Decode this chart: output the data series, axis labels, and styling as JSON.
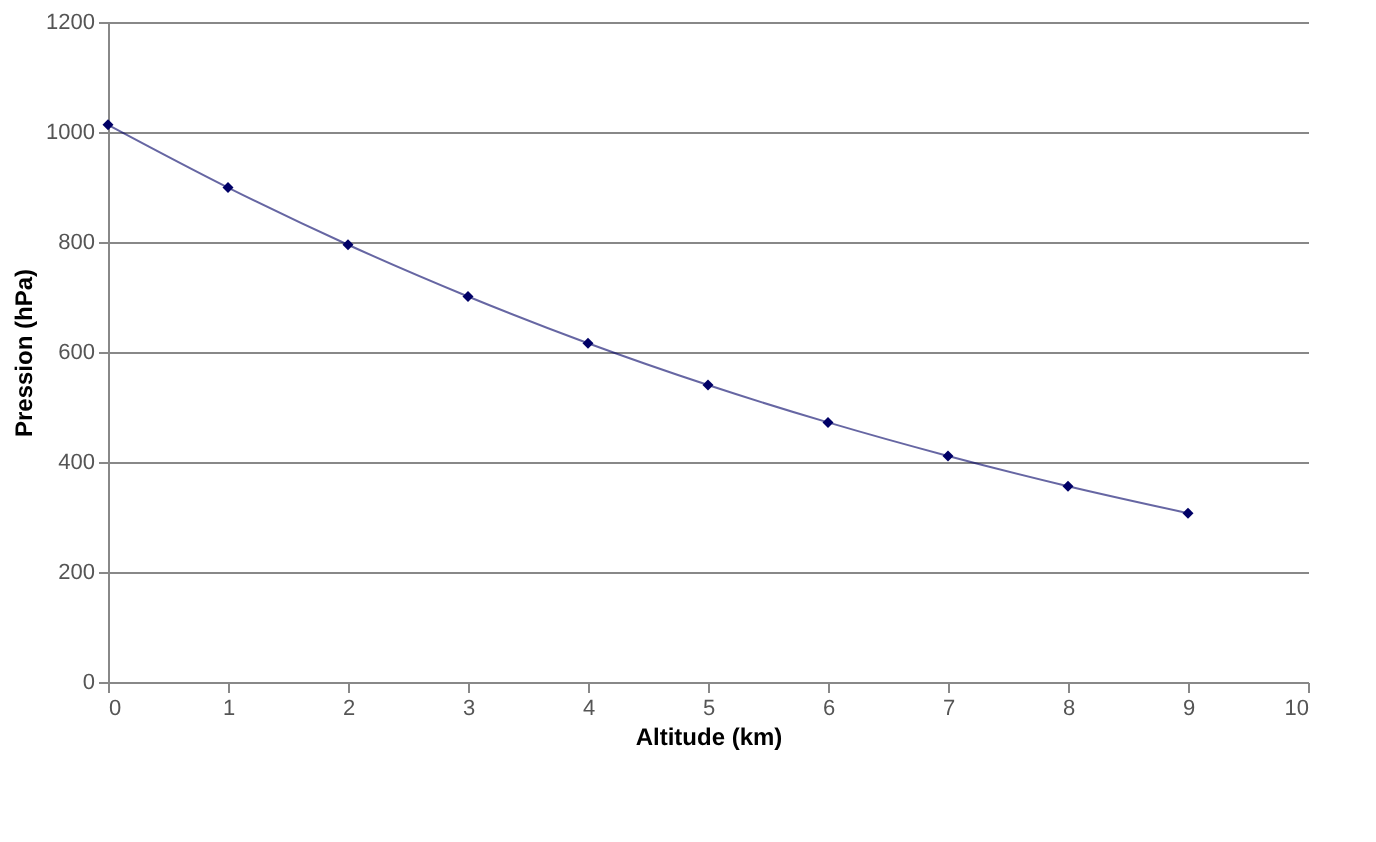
{
  "chart_data": {
    "type": "line",
    "xlabel": "Altitude (km)",
    "ylabel": "Pression (hPa)",
    "x": [
      0,
      1,
      2,
      3,
      4,
      5,
      6,
      7,
      8,
      9
    ],
    "series": [
      {
        "color": "#000066",
        "values": [
          1013,
          899,
          795,
          701,
          616,
          540,
          472,
          411,
          356,
          307
        ]
      }
    ],
    "xlim": [
      0,
      10
    ],
    "xticks": [
      0,
      1,
      2,
      3,
      4,
      5,
      6,
      7,
      8,
      9,
      10
    ],
    "ylim": [
      0,
      1200
    ],
    "yticks": [
      0,
      200,
      400,
      600,
      800,
      1000,
      1200
    ],
    "grid": "y",
    "marker": "diamond"
  }
}
